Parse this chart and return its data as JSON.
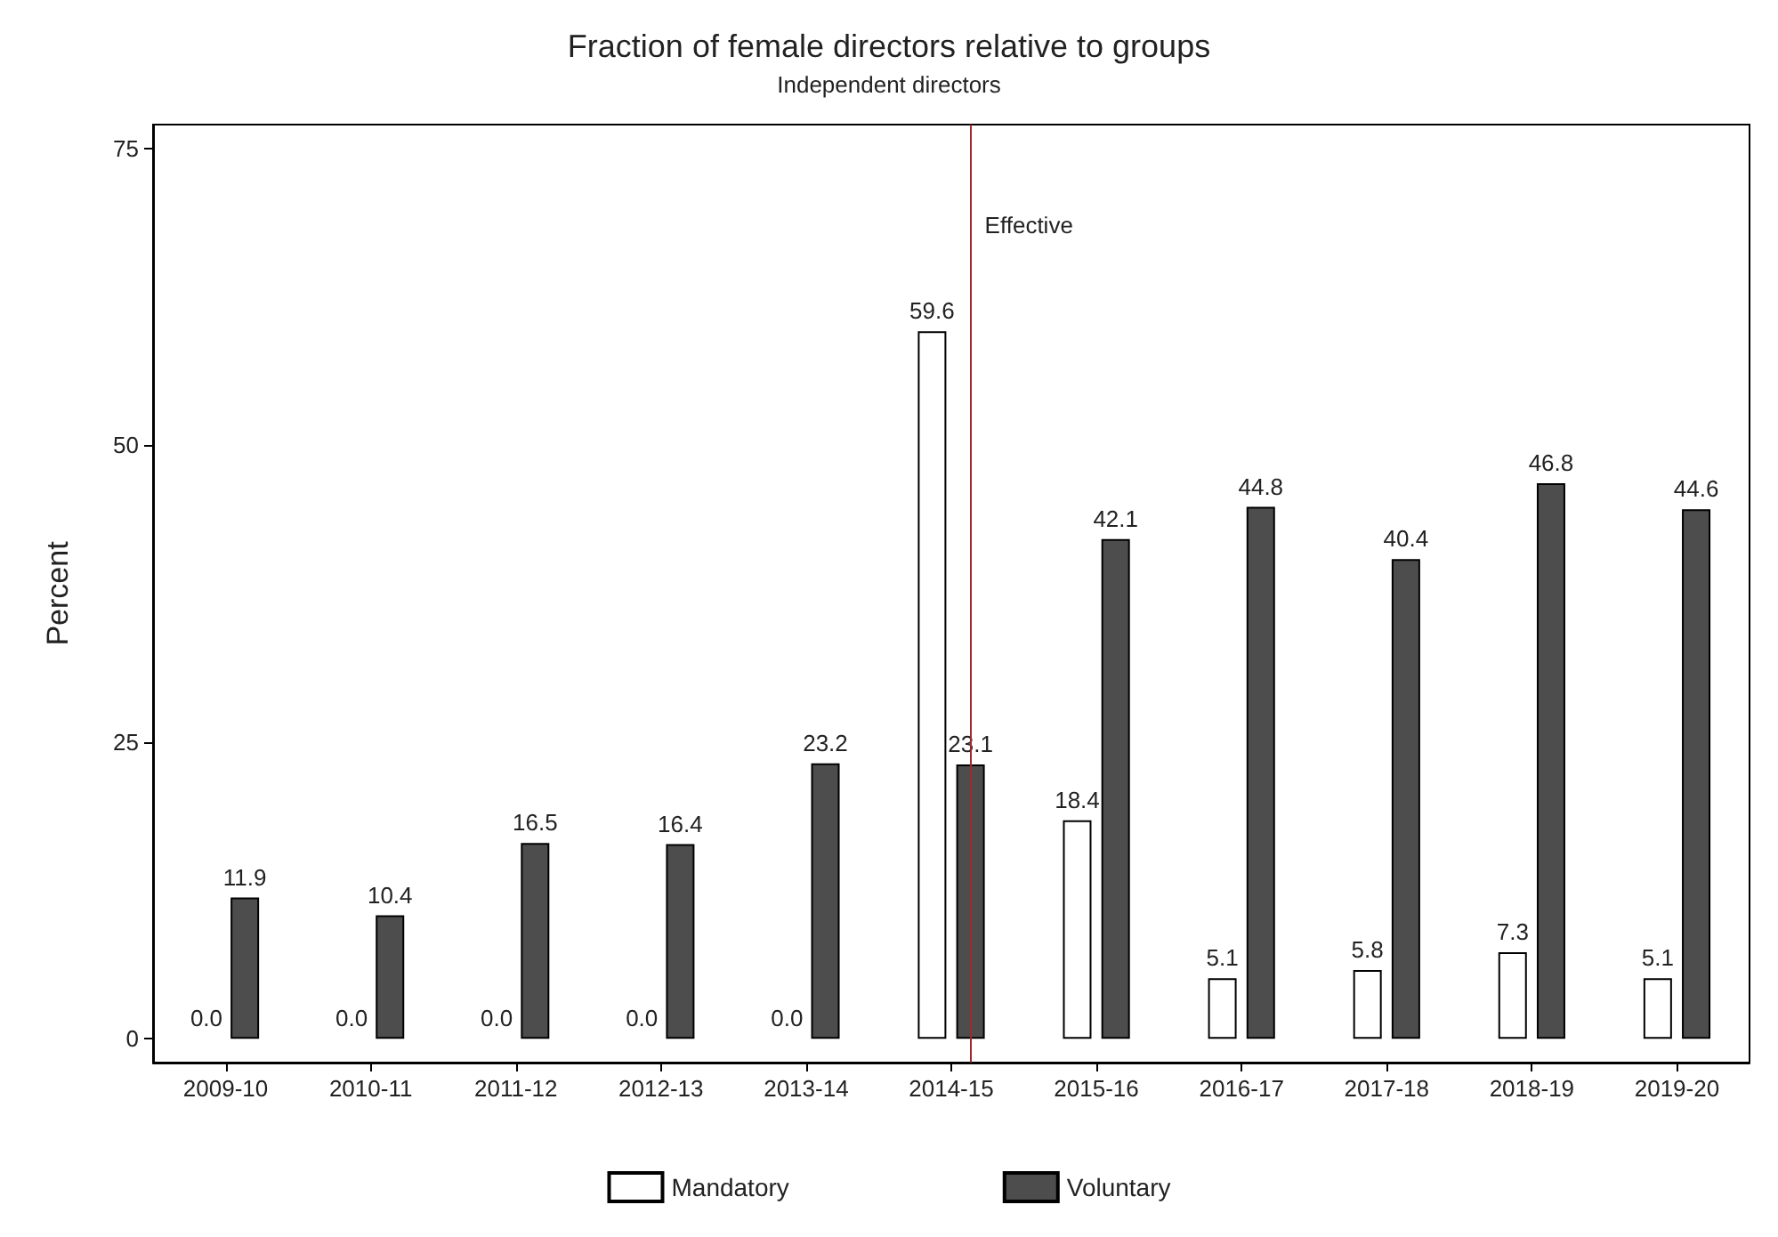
{
  "chart_data": {
    "type": "bar",
    "title": "Fraction of female directors relative to groups",
    "subtitle": "Independent directors",
    "ylabel": "Percent",
    "categories": [
      "2009-10",
      "2010-11",
      "2011-12",
      "2012-13",
      "2013-14",
      "2014-15",
      "2015-16",
      "2016-17",
      "2017-18",
      "2018-19",
      "2019-20"
    ],
    "series": [
      {
        "name": "Mandatory",
        "color": "#ffffff",
        "values": [
          0,
          0,
          0,
          0,
          0,
          59.6,
          18.4,
          5.1,
          5.8,
          7.3,
          5.1
        ],
        "value_labels": [
          "0.0",
          "0.0",
          "0.0",
          "0.0",
          "0.0",
          "59.6",
          "18.4",
          "5.1",
          "5.8",
          "7.3",
          "5.1"
        ]
      },
      {
        "name": "Voluntary",
        "color": "#4d4d4d",
        "values": [
          11.9,
          10.4,
          16.5,
          16.4,
          23.2,
          23.1,
          42.1,
          44.8,
          40.4,
          46.8,
          44.6
        ],
        "value_labels": [
          "11.9",
          "10.4",
          "16.5",
          "16.4",
          "23.2",
          "23.1",
          "42.1",
          "44.8",
          "40.4",
          "46.8",
          "44.6"
        ]
      }
    ],
    "ylim": [
      -2,
      77
    ],
    "yticks": [
      0,
      25,
      50,
      75
    ],
    "grid": false,
    "legend": "bottom",
    "ref_lines": [
      {
        "axis": "x",
        "value": "2014-15",
        "label": "Effective",
        "color": "#a0282d"
      }
    ]
  }
}
